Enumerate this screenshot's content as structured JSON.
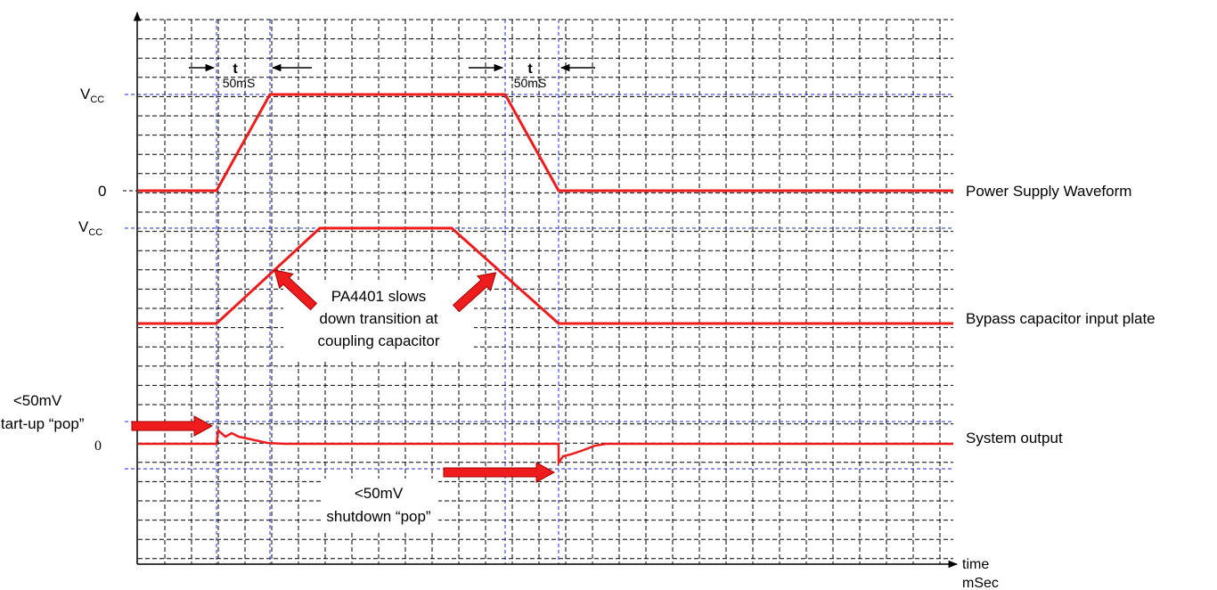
{
  "labels": {
    "vcc_top": "V",
    "vcc_top_sub": "CC",
    "zero_top": "0",
    "vcc_mid": "V",
    "vcc_mid_sub": "CC",
    "zero_sys": "0",
    "t_left": "t",
    "t_left_val": "50mS",
    "t_right": "t",
    "t_right_val": "50mS",
    "startup_line1": "<50mV",
    "startup_line2": "Start-up “pop”",
    "shutdown_line1": "<50mV",
    "shutdown_line2": "shutdown “pop”",
    "callout_line1": "PA4401 slows",
    "callout_line2": "down transition at",
    "callout_line3": "coupling capacitor",
    "axis_time": "time",
    "axis_unit": "mSec"
  },
  "waveforms": {
    "power_supply": "Power Supply Waveform",
    "bypass": "Bypass capacitor input plate",
    "system_output": "System output"
  },
  "colors": {
    "waveform": "#ee1c1c",
    "guide": "#1d2bd6",
    "grid": "#000000"
  }
}
